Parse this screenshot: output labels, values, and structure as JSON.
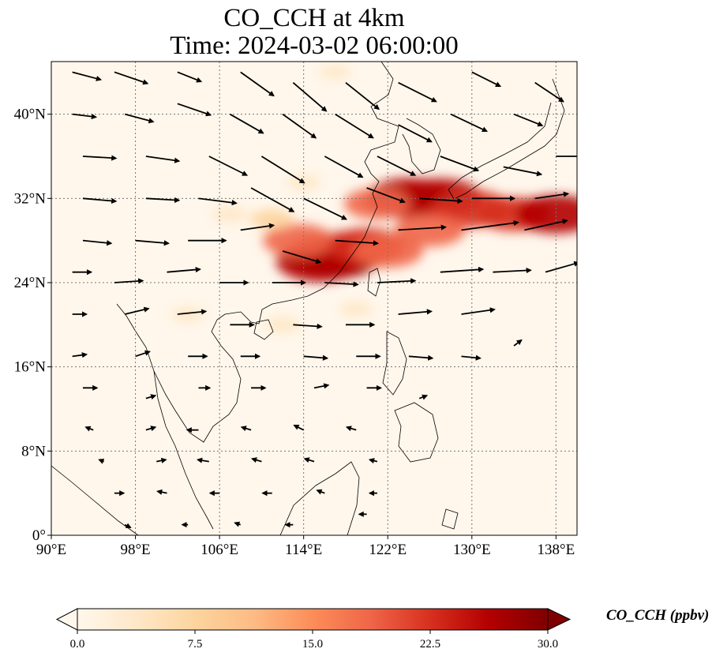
{
  "title": {
    "line1": "CO_CCH at 4km",
    "line2": "Time: 2024-03-02 06:00:00"
  },
  "map": {
    "projection": "PlateCarree",
    "lon_range": [
      90,
      140
    ],
    "lat_range": [
      0,
      45
    ],
    "gridlines": true,
    "coastlines": true,
    "borders": true,
    "lon_ticks": [
      {
        "value": 90,
        "label": "90°E"
      },
      {
        "value": 98,
        "label": "98°E"
      },
      {
        "value": 106,
        "label": "106°E"
      },
      {
        "value": 114,
        "label": "114°E"
      },
      {
        "value": 122,
        "label": "122°E"
      },
      {
        "value": 130,
        "label": "130°E"
      },
      {
        "value": 138,
        "label": "138°E"
      }
    ],
    "lat_ticks": [
      {
        "value": 0,
        "label": "0°"
      },
      {
        "value": 8,
        "label": "8°N"
      },
      {
        "value": 16,
        "label": "16°N"
      },
      {
        "value": 24,
        "label": "24°N"
      },
      {
        "value": 32,
        "label": "32°N"
      },
      {
        "value": 40,
        "label": "40°N"
      }
    ]
  },
  "colorbar": {
    "label": "CO_CCH (ppbv)",
    "min": 0,
    "max": 30,
    "colormap": "OrRd",
    "extend": "both",
    "ticks": [
      "0.0",
      "7.5",
      "15.0",
      "22.5",
      "30.0"
    ],
    "colors": [
      "#fff7ec",
      "#fee8c8",
      "#fdd49e",
      "#fdbb84",
      "#fc8d59",
      "#ef6548",
      "#d7301f",
      "#b30000",
      "#7f0000"
    ]
  },
  "chart_data": {
    "type": "heatmap",
    "variable": "CO_CCH",
    "units": "ppbv",
    "level": "4km",
    "time": "2024-03-02 06:00:00",
    "plumes": [
      {
        "lon": 117.0,
        "lat": 26.5,
        "value": 30
      },
      {
        "lon": 115.5,
        "lat": 26.0,
        "value": 27
      },
      {
        "lon": 118.5,
        "lat": 27.0,
        "value": 26
      },
      {
        "lon": 113.5,
        "lat": 28.0,
        "value": 20
      },
      {
        "lon": 120.0,
        "lat": 27.5,
        "value": 22
      },
      {
        "lon": 122.0,
        "lat": 27.0,
        "value": 20
      },
      {
        "lon": 124.0,
        "lat": 32.0,
        "value": 27
      },
      {
        "lon": 127.0,
        "lat": 32.0,
        "value": 26
      },
      {
        "lon": 130.0,
        "lat": 31.0,
        "value": 24
      },
      {
        "lon": 134.0,
        "lat": 30.5,
        "value": 21
      },
      {
        "lon": 138.0,
        "lat": 30.5,
        "value": 25
      },
      {
        "lon": 126.0,
        "lat": 29.0,
        "value": 20
      },
      {
        "lon": 121.0,
        "lat": 31.5,
        "value": 18
      },
      {
        "lon": 111.0,
        "lat": 30.0,
        "value": 8
      },
      {
        "lon": 107.0,
        "lat": 30.5,
        "value": 5
      },
      {
        "lon": 114.0,
        "lat": 33.5,
        "value": 4
      },
      {
        "lon": 103.0,
        "lat": 21.0,
        "value": 4
      },
      {
        "lon": 112.0,
        "lat": 20.0,
        "value": 5
      },
      {
        "lon": 119.0,
        "lat": 21.5,
        "value": 4
      },
      {
        "lon": 117.0,
        "lat": 44.0,
        "value": 3
      }
    ],
    "wind_vectors": [
      {
        "lon": 92,
        "lat": 44,
        "u": 3.0,
        "v": -0.8
      },
      {
        "lon": 96,
        "lat": 44,
        "u": 3.5,
        "v": -1.2
      },
      {
        "lon": 102,
        "lat": 44,
        "u": 2.5,
        "v": -1.0
      },
      {
        "lon": 108,
        "lat": 44,
        "u": 3.5,
        "v": -2.5
      },
      {
        "lon": 113,
        "lat": 43,
        "u": 3.5,
        "v": -3.0
      },
      {
        "lon": 118,
        "lat": 43,
        "u": 3.5,
        "v": -2.8
      },
      {
        "lon": 123,
        "lat": 43,
        "u": 4.0,
        "v": -2.0
      },
      {
        "lon": 130,
        "lat": 44,
        "u": 3.0,
        "v": -1.5
      },
      {
        "lon": 136,
        "lat": 43,
        "u": 3.0,
        "v": -2.0
      },
      {
        "lon": 92,
        "lat": 40,
        "u": 2.5,
        "v": -0.3
      },
      {
        "lon": 97,
        "lat": 40,
        "u": 3.0,
        "v": -0.8
      },
      {
        "lon": 102,
        "lat": 41,
        "u": 3.5,
        "v": -1.2
      },
      {
        "lon": 107,
        "lat": 40,
        "u": 3.5,
        "v": -2.0
      },
      {
        "lon": 112,
        "lat": 40,
        "u": 3.5,
        "v": -2.5
      },
      {
        "lon": 117,
        "lat": 40,
        "u": 4.0,
        "v": -2.5
      },
      {
        "lon": 123,
        "lat": 39,
        "u": 3.5,
        "v": -1.8
      },
      {
        "lon": 128,
        "lat": 40,
        "u": 3.8,
        "v": -1.8
      },
      {
        "lon": 134,
        "lat": 40,
        "u": 3.0,
        "v": -1.2
      },
      {
        "lon": 93,
        "lat": 36,
        "u": 3.5,
        "v": -0.2
      },
      {
        "lon": 99,
        "lat": 36,
        "u": 3.5,
        "v": -0.5
      },
      {
        "lon": 105,
        "lat": 36,
        "u": 4.0,
        "v": -2.0
      },
      {
        "lon": 110,
        "lat": 36,
        "u": 4.5,
        "v": -2.8
      },
      {
        "lon": 116,
        "lat": 36,
        "u": 4.0,
        "v": -2.2
      },
      {
        "lon": 121,
        "lat": 36,
        "u": 4.0,
        "v": -2.0
      },
      {
        "lon": 127,
        "lat": 36,
        "u": 4.0,
        "v": -1.5
      },
      {
        "lon": 133,
        "lat": 35,
        "u": 4.0,
        "v": -0.8
      },
      {
        "lon": 138,
        "lat": 36,
        "u": 3.0,
        "v": 0.0
      },
      {
        "lon": 93,
        "lat": 32,
        "u": 3.5,
        "v": -0.3
      },
      {
        "lon": 99,
        "lat": 32,
        "u": 3.5,
        "v": -0.2
      },
      {
        "lon": 104,
        "lat": 32,
        "u": 4.0,
        "v": -0.5
      },
      {
        "lon": 109,
        "lat": 33,
        "u": 4.5,
        "v": -2.5
      },
      {
        "lon": 114,
        "lat": 32,
        "u": 4.5,
        "v": -2.2
      },
      {
        "lon": 120,
        "lat": 33,
        "u": 4.0,
        "v": -1.5
      },
      {
        "lon": 125,
        "lat": 32,
        "u": 4.5,
        "v": -0.3
      },
      {
        "lon": 130,
        "lat": 32,
        "u": 4.5,
        "v": 0.0
      },
      {
        "lon": 136,
        "lat": 32,
        "u": 3.5,
        "v": 0.5
      },
      {
        "lon": 93,
        "lat": 28,
        "u": 3.0,
        "v": -0.3
      },
      {
        "lon": 98,
        "lat": 28,
        "u": 3.5,
        "v": -0.3
      },
      {
        "lon": 103,
        "lat": 28,
        "u": 4.0,
        "v": 0.0
      },
      {
        "lon": 108,
        "lat": 29,
        "u": 3.5,
        "v": 0.5
      },
      {
        "lon": 112,
        "lat": 27,
        "u": 4.0,
        "v": -1.2
      },
      {
        "lon": 117,
        "lat": 28,
        "u": 4.5,
        "v": -0.3
      },
      {
        "lon": 123,
        "lat": 29,
        "u": 5.0,
        "v": 0.3
      },
      {
        "lon": 129,
        "lat": 29,
        "u": 6.0,
        "v": 0.8
      },
      {
        "lon": 135,
        "lat": 29,
        "u": 4.5,
        "v": 1.0
      },
      {
        "lon": 92,
        "lat": 25,
        "u": 2.0,
        "v": 0.0
      },
      {
        "lon": 96,
        "lat": 24,
        "u": 3.0,
        "v": 0.2
      },
      {
        "lon": 101,
        "lat": 25,
        "u": 3.5,
        "v": 0.3
      },
      {
        "lon": 106,
        "lat": 24,
        "u": 3.0,
        "v": 0.0
      },
      {
        "lon": 111,
        "lat": 24,
        "u": 3.5,
        "v": 0.0
      },
      {
        "lon": 116,
        "lat": 24,
        "u": 3.5,
        "v": -0.2
      },
      {
        "lon": 121,
        "lat": 24,
        "u": 4.0,
        "v": 0.2
      },
      {
        "lon": 127,
        "lat": 25,
        "u": 4.5,
        "v": 0.3
      },
      {
        "lon": 132,
        "lat": 25,
        "u": 4.0,
        "v": 0.2
      },
      {
        "lon": 137,
        "lat": 25,
        "u": 3.5,
        "v": 1.0
      },
      {
        "lon": 92,
        "lat": 21,
        "u": 1.5,
        "v": 0.0
      },
      {
        "lon": 97,
        "lat": 21,
        "u": 2.5,
        "v": 0.6
      },
      {
        "lon": 102,
        "lat": 21,
        "u": 3.0,
        "v": 0.3
      },
      {
        "lon": 107,
        "lat": 20,
        "u": 2.5,
        "v": 0.0
      },
      {
        "lon": 113,
        "lat": 20,
        "u": 3.0,
        "v": -0.2
      },
      {
        "lon": 118,
        "lat": 20,
        "u": 3.0,
        "v": 0.0
      },
      {
        "lon": 123,
        "lat": 21,
        "u": 3.5,
        "v": 0.3
      },
      {
        "lon": 129,
        "lat": 21,
        "u": 3.5,
        "v": 0.5
      },
      {
        "lon": 92,
        "lat": 17,
        "u": 1.5,
        "v": 0.2
      },
      {
        "lon": 98,
        "lat": 17,
        "u": 1.5,
        "v": 0.5
      },
      {
        "lon": 103,
        "lat": 17,
        "u": 2.0,
        "v": 0.0
      },
      {
        "lon": 108,
        "lat": 17,
        "u": 2.0,
        "v": 0.0
      },
      {
        "lon": 114,
        "lat": 17,
        "u": 2.5,
        "v": -0.2
      },
      {
        "lon": 119,
        "lat": 17,
        "u": 2.5,
        "v": 0.0
      },
      {
        "lon": 124,
        "lat": 17,
        "u": 2.5,
        "v": -0.2
      },
      {
        "lon": 129,
        "lat": 17,
        "u": 2.0,
        "v": -0.2
      },
      {
        "lon": 134,
        "lat": 18,
        "u": 0.8,
        "v": 0.6
      },
      {
        "lon": 93,
        "lat": 14,
        "u": 1.5,
        "v": 0.0
      },
      {
        "lon": 99,
        "lat": 13,
        "u": 1.0,
        "v": 0.3
      },
      {
        "lon": 104,
        "lat": 14,
        "u": 1.2,
        "v": 0.0
      },
      {
        "lon": 109,
        "lat": 14,
        "u": 1.5,
        "v": 0.0
      },
      {
        "lon": 115,
        "lat": 14,
        "u": 1.5,
        "v": 0.3
      },
      {
        "lon": 120,
        "lat": 14,
        "u": 1.5,
        "v": 0.0
      },
      {
        "lon": 125,
        "lat": 13,
        "u": 0.8,
        "v": 0.3
      },
      {
        "lon": 94,
        "lat": 10,
        "u": -0.8,
        "v": 0.3
      },
      {
        "lon": 99,
        "lat": 10,
        "u": 1.0,
        "v": 0.3
      },
      {
        "lon": 104,
        "lat": 10,
        "u": -1.2,
        "v": 0.0
      },
      {
        "lon": 109,
        "lat": 10,
        "u": -1.0,
        "v": 0.3
      },
      {
        "lon": 114,
        "lat": 10,
        "u": -1.0,
        "v": 0.5
      },
      {
        "lon": 119,
        "lat": 10,
        "u": -1.0,
        "v": 0.3
      },
      {
        "lon": 95,
        "lat": 7,
        "u": -0.5,
        "v": 0.2
      },
      {
        "lon": 100,
        "lat": 7,
        "u": 1.0,
        "v": 0.2
      },
      {
        "lon": 105,
        "lat": 7,
        "u": -1.2,
        "v": 0.2
      },
      {
        "lon": 110,
        "lat": 7,
        "u": -1.0,
        "v": 0.3
      },
      {
        "lon": 115,
        "lat": 7,
        "u": -1.0,
        "v": 0.3
      },
      {
        "lon": 121,
        "lat": 7,
        "u": -0.8,
        "v": 0.2
      },
      {
        "lon": 96,
        "lat": 4,
        "u": 1.0,
        "v": 0.0
      },
      {
        "lon": 101,
        "lat": 4,
        "u": -1.0,
        "v": 0.2
      },
      {
        "lon": 106,
        "lat": 4,
        "u": -1.0,
        "v": 0.0
      },
      {
        "lon": 111,
        "lat": 4,
        "u": -1.0,
        "v": 0.0
      },
      {
        "lon": 116,
        "lat": 4,
        "u": -0.8,
        "v": 0.3
      },
      {
        "lon": 121,
        "lat": 4,
        "u": -0.8,
        "v": 0.0
      },
      {
        "lon": 97,
        "lat": 1,
        "u": 0.6,
        "v": -0.3
      },
      {
        "lon": 103,
        "lat": 1,
        "u": -0.6,
        "v": 0.0
      },
      {
        "lon": 108,
        "lat": 1,
        "u": -0.6,
        "v": 0.2
      },
      {
        "lon": 113,
        "lat": 1,
        "u": -0.8,
        "v": 0.0
      },
      {
        "lon": 120,
        "lat": 2,
        "u": -0.8,
        "v": 0.0
      }
    ]
  }
}
